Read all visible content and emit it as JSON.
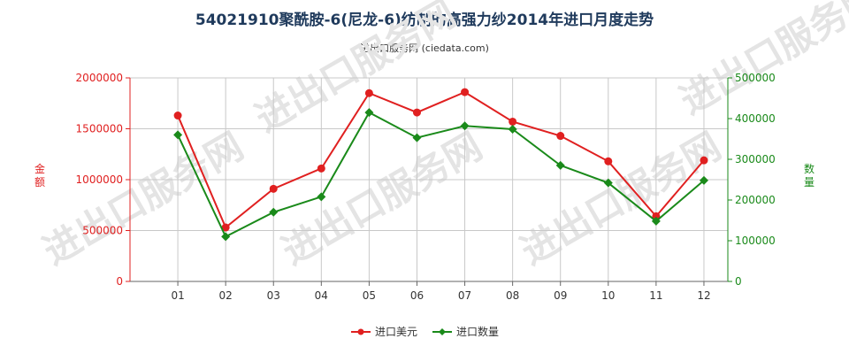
{
  "chart_data": {
    "type": "line",
    "title": "54021910聚酰胺-6(尼龙-6)纺制的高强力纱2014年进口月度走势",
    "subtitle": "进出口服务网 (ciedata.com)",
    "watermark": "进出口服务网",
    "categories": [
      "01",
      "02",
      "03",
      "04",
      "05",
      "06",
      "07",
      "08",
      "09",
      "10",
      "11",
      "12"
    ],
    "y_left": {
      "label": "金额",
      "ticks": [
        "0",
        "500000",
        "1000000",
        "1500000",
        "2000000"
      ],
      "ylim": [
        0,
        2000000
      ],
      "color": "#e02020"
    },
    "y_right": {
      "label": "数量",
      "ticks": [
        "0",
        "100000",
        "200000",
        "300000",
        "400000",
        "500000"
      ],
      "ylim": [
        0,
        500000
      ],
      "color": "#1a8a1a"
    },
    "series": [
      {
        "name": "进口美元",
        "axis": "left",
        "color": "#e02020",
        "marker": "circle",
        "values": [
          1630000,
          530000,
          910000,
          1110000,
          1850000,
          1660000,
          1860000,
          1570000,
          1430000,
          1180000,
          640000,
          1190000
        ]
      },
      {
        "name": "进口数量",
        "axis": "right",
        "color": "#1a8a1a",
        "marker": "diamond",
        "values": [
          360000,
          110000,
          170000,
          208000,
          415000,
          353000,
          382000,
          374000,
          285000,
          242000,
          148000,
          248000
        ]
      }
    ],
    "grid": true,
    "legend_position": "bottom-center"
  }
}
